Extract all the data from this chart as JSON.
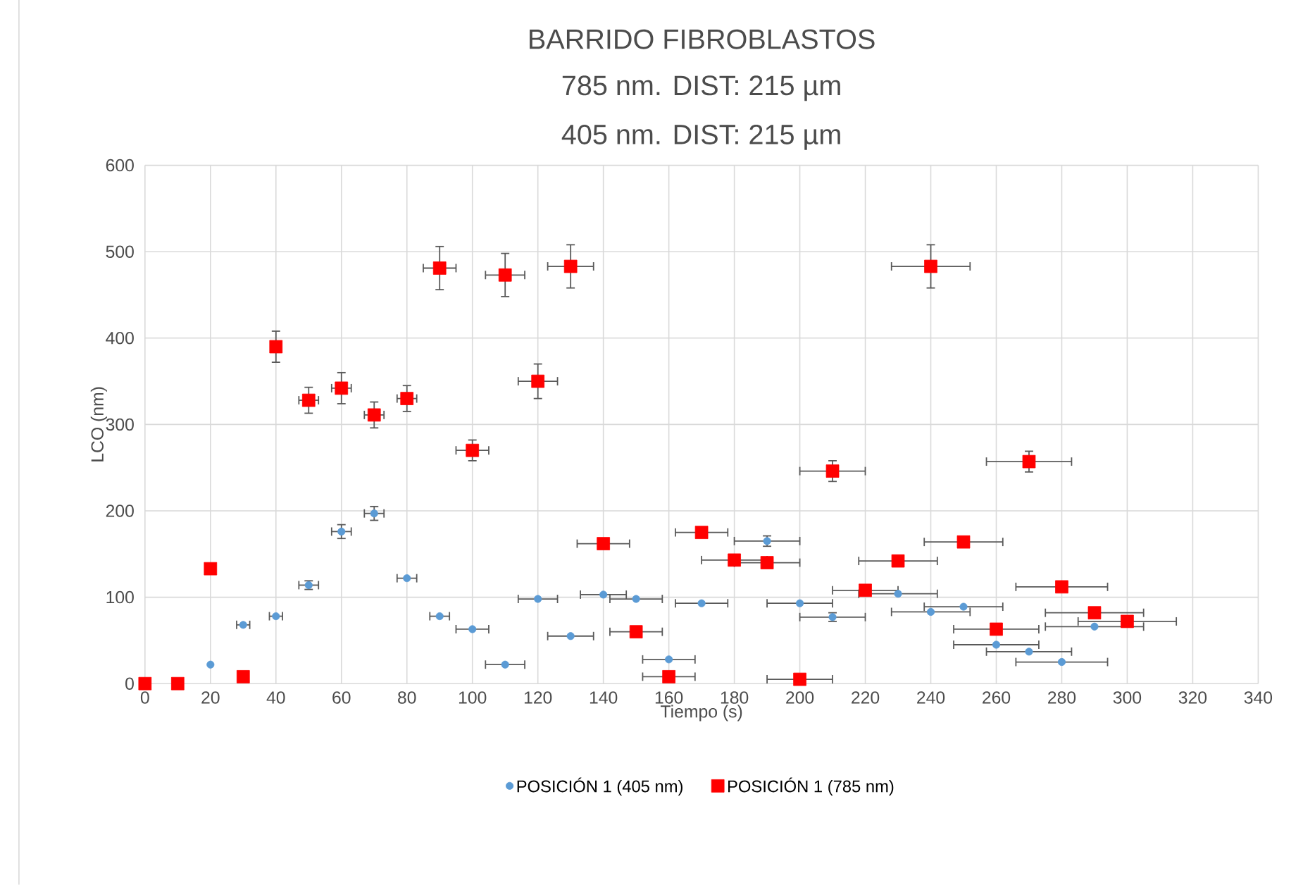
{
  "chart_data": {
    "type": "scatter",
    "title": "BARRIDO FIBROBLASTOS",
    "subtitle": "785 nm. DIST: 215 µm",
    "annotations": [
      "405 nm. DIST: 215 µm"
    ],
    "xlabel": "Tiempo (s)",
    "ylabel": "LCO (nm)",
    "xlim": [
      0,
      340
    ],
    "xticks": [
      0,
      20,
      40,
      60,
      80,
      100,
      120,
      140,
      160,
      180,
      200,
      220,
      240,
      260,
      280,
      300,
      320,
      340
    ],
    "ylim": [
      0,
      600
    ],
    "yticks": [
      0,
      100,
      200,
      300,
      400,
      500,
      600
    ],
    "grid": true,
    "legend": "bottom",
    "series": [
      {
        "name": "POSICIÓN 1 (405 nm)",
        "color": "#5b9bd5",
        "marker": "circle",
        "x": [
          20,
          30,
          40,
          50,
          60,
          70,
          80,
          90,
          100,
          110,
          120,
          130,
          140,
          150,
          160,
          170,
          180,
          190,
          200,
          210,
          220,
          230,
          240,
          250,
          260,
          270,
          280,
          290
        ],
        "values": [
          22,
          68,
          78,
          114,
          176,
          197,
          122,
          78,
          63,
          22,
          98,
          55,
          103,
          98,
          28,
          93,
          null,
          165,
          93,
          77,
          null,
          104,
          83,
          89,
          45,
          37,
          25,
          66
        ],
        "errors": [
          null,
          null,
          null,
          5,
          8,
          8,
          null,
          null,
          null,
          null,
          null,
          null,
          null,
          null,
          null,
          null,
          null,
          6,
          null,
          5,
          null,
          null,
          null,
          null,
          null,
          null,
          null,
          null
        ],
        "xerrors": [
          null,
          2,
          2,
          3,
          3,
          3,
          3,
          3,
          5,
          6,
          6,
          7,
          7,
          8,
          8,
          8,
          null,
          10,
          10,
          10,
          null,
          12,
          12,
          12,
          13,
          13,
          14,
          15
        ]
      },
      {
        "name": "POSICIÓN 1 (785 nm)",
        "color": "#ff0000",
        "marker": "square",
        "x": [
          0,
          10,
          20,
          30,
          40,
          50,
          60,
          70,
          80,
          90,
          100,
          110,
          120,
          130,
          140,
          150,
          160,
          170,
          180,
          190,
          200,
          210,
          220,
          230,
          240,
          250,
          260,
          270,
          280,
          290,
          300
        ],
        "values": [
          0,
          0,
          133,
          8,
          390,
          328,
          342,
          311,
          330,
          481,
          270,
          473,
          350,
          483,
          162,
          60,
          8,
          175,
          143,
          140,
          5,
          246,
          108,
          142,
          483,
          164,
          63,
          257,
          112,
          82,
          72
        ],
        "errors": [
          null,
          null,
          null,
          null,
          18,
          15,
          18,
          15,
          15,
          25,
          12,
          25,
          20,
          25,
          null,
          null,
          null,
          null,
          null,
          null,
          null,
          12,
          null,
          null,
          25,
          null,
          null,
          12,
          null,
          null,
          null
        ],
        "xerrors": [
          null,
          null,
          null,
          null,
          null,
          3,
          3,
          3,
          3,
          5,
          5,
          6,
          6,
          7,
          8,
          8,
          8,
          8,
          10,
          10,
          10,
          10,
          10,
          12,
          12,
          12,
          13,
          13,
          14,
          15,
          15
        ]
      }
    ]
  }
}
